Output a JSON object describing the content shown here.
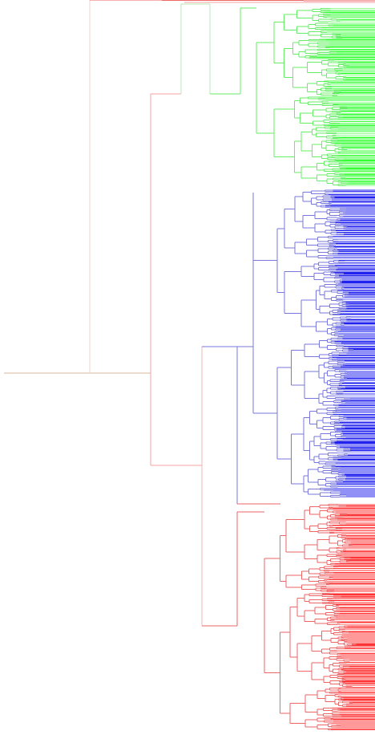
{
  "tree": {
    "root_to_top": "mixed",
    "clusters": [
      {
        "name": "",
        "color": "#00dd00",
        "rows": 220
      },
      {
        "name": "",
        "color": "#0000dd",
        "rows": 390
      },
      {
        "name": "",
        "color": "#ee0000",
        "rows": 300
      }
    ],
    "edge_colors": {
      "red_green": "#f4a0a0",
      "blue": "#7777dd",
      "green": "#66ee66",
      "red": "#ee6666",
      "leaf_green": "#33ff33",
      "leaf_blue": "#2222ee",
      "leaf_red": "#ff3333",
      "trunk": "#d9b59b"
    }
  }
}
